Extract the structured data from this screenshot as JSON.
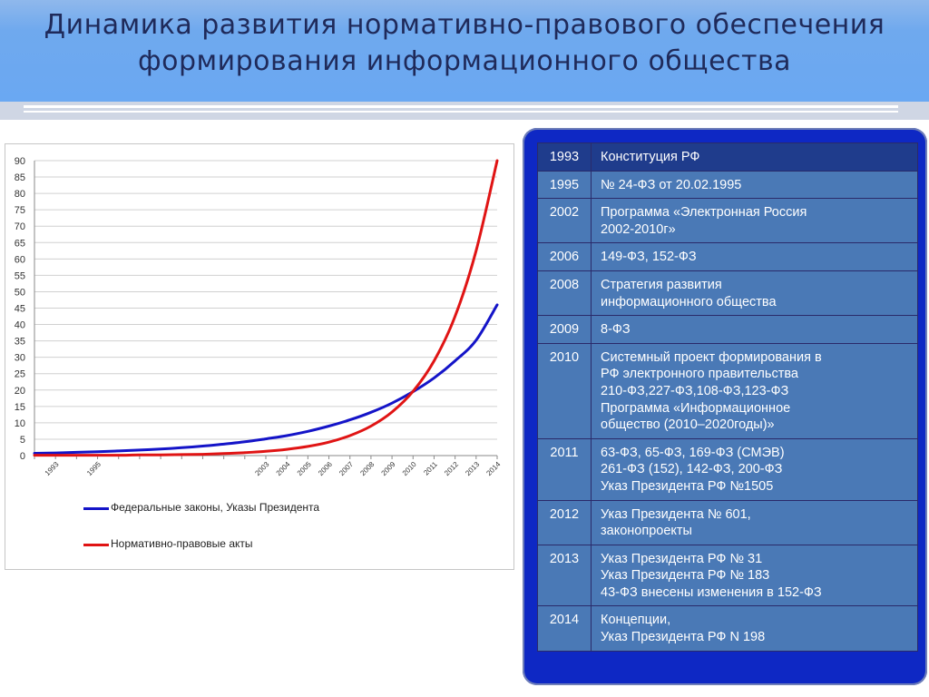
{
  "title_lines": [
    "Динамика развития нормативно-правового обеспечения",
    "формирования информационного общества"
  ],
  "chart_data": {
    "type": "line",
    "ylim": [
      0,
      90
    ],
    "y_ticks": [
      0,
      5,
      10,
      15,
      20,
      25,
      30,
      35,
      40,
      45,
      50,
      55,
      60,
      65,
      70,
      75,
      80,
      85,
      90
    ],
    "x_categories": [
      "1993",
      "1995",
      "2003",
      "2004",
      "2005",
      "2006",
      "2007",
      "2008",
      "2009",
      "2010",
      "2011",
      "2012",
      "2013",
      "2014"
    ],
    "x_range": [
      1992,
      2014
    ],
    "grid": true,
    "legend_position": "bottom",
    "series": [
      {
        "name": "Федеральные законы, Указы Президента",
        "color": "#1414c8",
        "x": [
          1992,
          1993,
          1994,
          1995,
          1996,
          1997,
          1998,
          1999,
          2000,
          2001,
          2002,
          2003,
          2004,
          2005,
          2006,
          2007,
          2008,
          2009,
          2010,
          2011,
          2012,
          2013,
          2014
        ],
        "y": [
          0.7,
          0.8,
          1.0,
          1.2,
          1.4,
          1.7,
          2.0,
          2.4,
          2.9,
          3.5,
          4.2,
          5.1,
          6.1,
          7.4,
          9.0,
          10.9,
          13.2,
          16.0,
          19.5,
          23.7,
          28.9,
          35.2,
          46.0
        ]
      },
      {
        "name": "Нормативно-правовые акты",
        "color": "#e01414",
        "x": [
          1992,
          1993,
          1994,
          1995,
          1996,
          1997,
          1998,
          1999,
          2000,
          2001,
          2002,
          2003,
          2004,
          2005,
          2006,
          2007,
          2008,
          2009,
          2010,
          2011,
          2012,
          2013,
          2014
        ],
        "y": [
          0.1,
          0.1,
          0.1,
          0.1,
          0.1,
          0.2,
          0.2,
          0.3,
          0.4,
          0.6,
          0.9,
          1.3,
          1.9,
          2.8,
          4.1,
          6.1,
          9.0,
          13.3,
          19.6,
          28.9,
          42.5,
          62.5,
          90.0
        ]
      }
    ]
  },
  "timeline": [
    {
      "year": "1993",
      "event": "Конституция РФ"
    },
    {
      "year": "1995",
      "event": "№ 24-ФЗ от 20.02.1995"
    },
    {
      "year": "2002",
      "event": "Программа «Электронная  Россия\n2002-2010г»"
    },
    {
      "year": "2006",
      "event": "149-ФЗ, 152-ФЗ"
    },
    {
      "year": "2008",
      "event": "Стратегия развития\nинформационного общества"
    },
    {
      "year": "2009",
      "event": "8-ФЗ"
    },
    {
      "year": "2010",
      "event": "Системный проект формирования в\nРФ электронного правительства\n210-ФЗ,227-ФЗ,108-ФЗ,123-ФЗ\nПрограмма «Информационное\nобщество (2010–2020годы)»"
    },
    {
      "year": "2011",
      "event": "63-ФЗ, 65-ФЗ, 169-ФЗ (СМЭВ)\n261-ФЗ (152), 142-ФЗ, 200-ФЗ\nУказ Президента РФ №1505"
    },
    {
      "year": "2012",
      "event": "Указ  Президента № 601,\nзаконопроекты"
    },
    {
      "year": "2013",
      "event": "Указ Президента РФ №  31\nУказ Президента РФ № 183\n43-ФЗ внесены изменения в 152-ФЗ"
    },
    {
      "year": "2014",
      "event": "Концепции,\nУказ Президента РФ N 198"
    }
  ]
}
